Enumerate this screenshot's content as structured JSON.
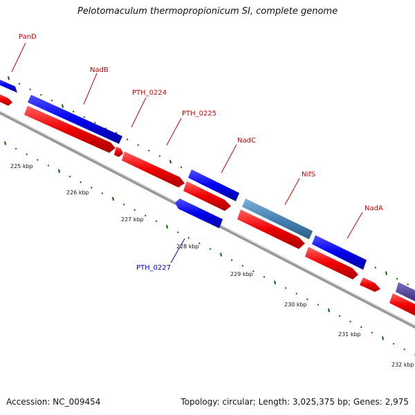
{
  "title": "Pelotomaculum thermopropionicum SI, complete genome",
  "footer": {
    "accession": "Accession: NC_009454",
    "summary": "Topology: circular; Length: 3,025,375 bp; Genes: 2,975"
  },
  "colors": {
    "forward_gene": "#0000ee",
    "reverse_gene": "#ee0000",
    "highlight_gene": "#4682b4",
    "other_gene": "#4b3c8c",
    "backbone": "#888888",
    "tick": "#006400",
    "label_forward": "#cc0000",
    "label_reverse": "#0000cc"
  },
  "scale_labels": [
    "225 kbp",
    "226 kbp",
    "227 kbp",
    "228 kbp",
    "229 kbp",
    "230 kbp",
    "231 kbp",
    "232 kbp"
  ],
  "gene_labels": [
    {
      "text": "PanD",
      "color": "#cc0000"
    },
    {
      "text": "NadB",
      "color": "#cc0000"
    },
    {
      "text": "PTH_0224",
      "color": "#cc0000"
    },
    {
      "text": "PTH_0225",
      "color": "#cc0000"
    },
    {
      "text": "NadC",
      "color": "#cc0000"
    },
    {
      "text": "NifS",
      "color": "#cc0000"
    },
    {
      "text": "NadA",
      "color": "#cc0000"
    },
    {
      "text": "PTH_0227",
      "color": "#0000cc"
    }
  ]
}
